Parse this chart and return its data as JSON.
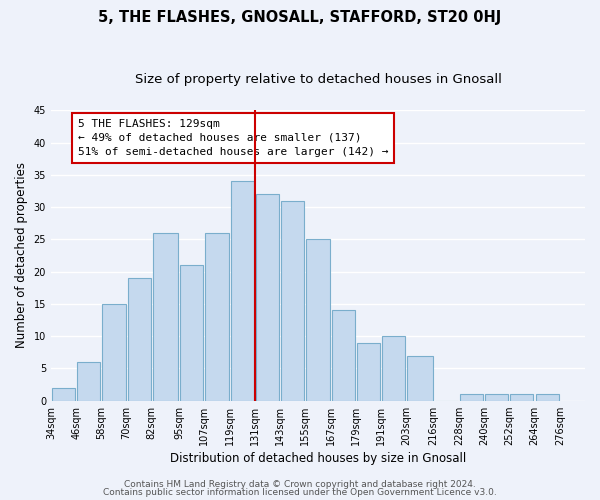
{
  "title": "5, THE FLASHES, GNOSALL, STAFFORD, ST20 0HJ",
  "subtitle": "Size of property relative to detached houses in Gnosall",
  "xlabel": "Distribution of detached houses by size in Gnosall",
  "ylabel": "Number of detached properties",
  "bar_left_edges": [
    34,
    46,
    58,
    70,
    82,
    95,
    107,
    119,
    131,
    143,
    155,
    167,
    179,
    191,
    203,
    216,
    228,
    240,
    252,
    264
  ],
  "bar_widths": [
    12,
    12,
    12,
    12,
    13,
    12,
    12,
    12,
    12,
    12,
    12,
    12,
    12,
    12,
    13,
    12,
    12,
    12,
    12,
    12
  ],
  "bar_heights": [
    2,
    6,
    15,
    19,
    26,
    21,
    26,
    34,
    32,
    31,
    25,
    14,
    9,
    10,
    7,
    0,
    1,
    1,
    1,
    1
  ],
  "bar_color": "#c5d9ee",
  "bar_edgecolor": "#7aaecc",
  "bar_linewidth": 0.8,
  "vline_x": 131,
  "vline_color": "#cc0000",
  "vline_linewidth": 1.5,
  "ylim": [
    0,
    45
  ],
  "xlim_left": 34,
  "xlim_right": 288,
  "yticks": [
    0,
    5,
    10,
    15,
    20,
    25,
    30,
    35,
    40,
    45
  ],
  "xtick_labels": [
    "34sqm",
    "46sqm",
    "58sqm",
    "70sqm",
    "82sqm",
    "95sqm",
    "107sqm",
    "119sqm",
    "131sqm",
    "143sqm",
    "155sqm",
    "167sqm",
    "179sqm",
    "191sqm",
    "203sqm",
    "216sqm",
    "228sqm",
    "240sqm",
    "252sqm",
    "264sqm",
    "276sqm"
  ],
  "xtick_positions": [
    34,
    46,
    58,
    70,
    82,
    95,
    107,
    119,
    131,
    143,
    155,
    167,
    179,
    191,
    203,
    216,
    228,
    240,
    252,
    264,
    276
  ],
  "annotation_title": "5 THE FLASHES: 129sqm",
  "annotation_line1": "← 49% of detached houses are smaller (137)",
  "annotation_line2": "51% of semi-detached houses are larger (142) →",
  "footer_line1": "Contains HM Land Registry data © Crown copyright and database right 2024.",
  "footer_line2": "Contains public sector information licensed under the Open Government Licence v3.0.",
  "bg_color": "#eef2fa",
  "grid_color": "#ffffff",
  "title_fontsize": 10.5,
  "subtitle_fontsize": 9.5,
  "axis_label_fontsize": 8.5,
  "tick_fontsize": 7,
  "annotation_fontsize": 8,
  "footer_fontsize": 6.5
}
